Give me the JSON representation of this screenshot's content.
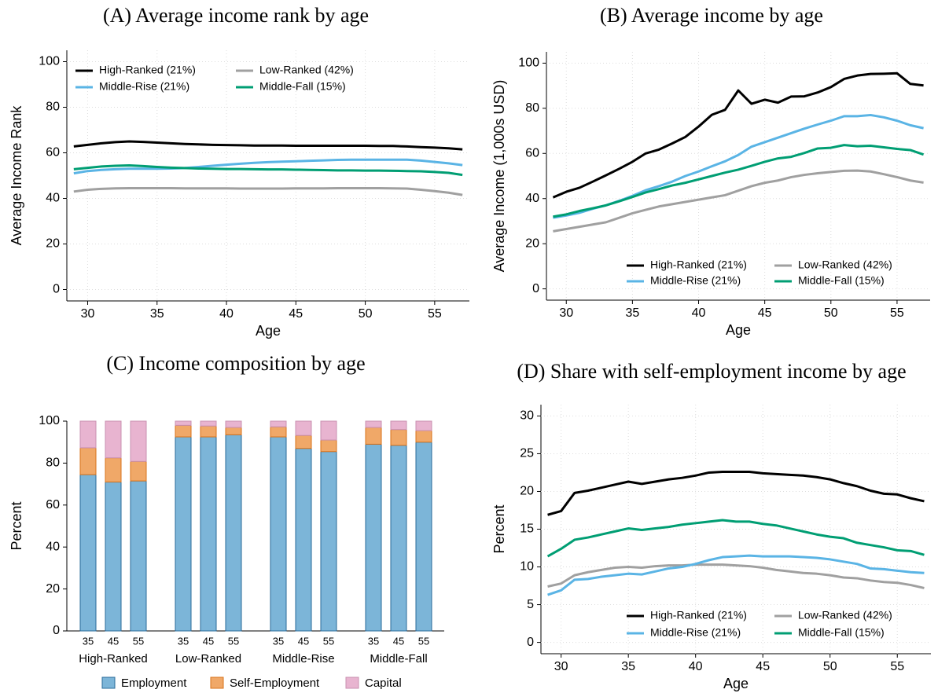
{
  "chart_data": [
    {
      "type": "line",
      "title": "(A) Average income rank by age",
      "xlabel": "Age",
      "ylabel": "Average Income Rank",
      "x": [
        29,
        30,
        31,
        32,
        33,
        34,
        35,
        36,
        37,
        38,
        39,
        40,
        41,
        42,
        43,
        44,
        45,
        46,
        47,
        48,
        49,
        50,
        51,
        52,
        53,
        54,
        55,
        56,
        57
      ],
      "xlim": [
        28.5,
        57.5
      ],
      "xticks": [
        30,
        35,
        40,
        45,
        50,
        55
      ],
      "ylim": [
        -5,
        105
      ],
      "yticks": [
        0,
        20,
        40,
        60,
        80,
        100
      ],
      "grid": true,
      "legend": "upper left",
      "series": [
        {
          "name": "High-Ranked (21%)",
          "color": "#000000",
          "values": [
            62.8,
            63.5,
            64.2,
            64.7,
            65,
            64.8,
            64.5,
            64.2,
            63.9,
            63.7,
            63.5,
            63.4,
            63.3,
            63.2,
            63.2,
            63.2,
            63.1,
            63.1,
            63.1,
            63.1,
            63.1,
            63.1,
            63.0,
            63.0,
            62.8,
            62.5,
            62.3,
            62.0,
            61.5
          ]
        },
        {
          "name": "Low-Ranked (42%)",
          "color": "#a0a0a0",
          "values": [
            43,
            43.8,
            44.2,
            44.4,
            44.5,
            44.5,
            44.5,
            44.5,
            44.4,
            44.4,
            44.4,
            44.4,
            44.3,
            44.3,
            44.3,
            44.3,
            44.4,
            44.4,
            44.4,
            44.5,
            44.5,
            44.5,
            44.5,
            44.4,
            44.3,
            43.8,
            43.2,
            42.5,
            41.5
          ]
        },
        {
          "name": "Middle-Rise (21%)",
          "color": "#5ab4e5",
          "values": [
            51,
            52,
            52.5,
            52.8,
            53,
            53,
            53,
            53.1,
            53.3,
            53.8,
            54.3,
            54.8,
            55.2,
            55.6,
            55.9,
            56.1,
            56.3,
            56.5,
            56.7,
            56.9,
            57,
            57,
            57,
            57,
            57,
            56.6,
            56,
            55.4,
            54.6
          ]
        },
        {
          "name": "Middle-Fall (15%)",
          "color": "#009e73",
          "values": [
            52.8,
            53.4,
            54,
            54.3,
            54.5,
            54.2,
            53.8,
            53.5,
            53.3,
            53.1,
            53,
            52.9,
            52.9,
            52.8,
            52.7,
            52.7,
            52.6,
            52.5,
            52.4,
            52.3,
            52.3,
            52.2,
            52.2,
            52.1,
            52,
            51.9,
            51.6,
            51.2,
            50.3
          ]
        }
      ]
    },
    {
      "type": "line",
      "title": "(B) Average income by age",
      "xlabel": "Age",
      "ylabel": "Average Income (1,000s USD)",
      "x": [
        29,
        30,
        31,
        32,
        33,
        34,
        35,
        36,
        37,
        38,
        39,
        40,
        41,
        42,
        43,
        44,
        45,
        46,
        47,
        48,
        49,
        50,
        51,
        52,
        53,
        54,
        55,
        56,
        57
      ],
      "xlim": [
        28.5,
        57.5
      ],
      "xticks": [
        30,
        35,
        40,
        45,
        50,
        55
      ],
      "ylim": [
        -5,
        105
      ],
      "yticks": [
        0,
        20,
        40,
        60,
        80,
        100
      ],
      "grid": true,
      "legend": "lower right",
      "series": [
        {
          "name": "High-Ranked (21%)",
          "color": "#000000",
          "values": [
            40.5,
            43,
            44.8,
            47.5,
            50.3,
            53.2,
            56.3,
            60,
            61.7,
            64.4,
            67.3,
            71.9,
            77.1,
            79.3,
            87.9,
            82,
            83.8,
            82.5,
            85.2,
            85.3,
            87,
            89.4,
            93,
            94.5,
            95.2,
            95.3,
            95.5,
            90.8,
            90.1
          ]
        },
        {
          "name": "Low-Ranked (42%)",
          "color": "#a0a0a0",
          "values": [
            25.5,
            26.5,
            27.5,
            28.5,
            29.5,
            31.5,
            33.5,
            35,
            36.5,
            37.5,
            38.5,
            39.5,
            40.5,
            41.5,
            43.5,
            45.5,
            47,
            48,
            49.5,
            50.5,
            51.2,
            51.8,
            52.3,
            52.4,
            52,
            50.8,
            49.5,
            48,
            47.1
          ]
        },
        {
          "name": "Middle-Rise (21%)",
          "color": "#5ab4e5",
          "values": [
            31.5,
            32.5,
            33.7,
            35.5,
            37,
            39,
            41.2,
            43.7,
            45.5,
            47.5,
            50,
            52,
            54.3,
            56.5,
            59.3,
            63,
            65,
            67,
            69,
            71,
            72.8,
            74.5,
            76.5,
            76.5,
            77,
            76,
            74.5,
            72.5,
            71.2
          ]
        },
        {
          "name": "Middle-Fall (15%)",
          "color": "#009e73",
          "values": [
            32,
            33,
            34.5,
            35.7,
            37,
            38.8,
            40.7,
            42.7,
            44.2,
            45.8,
            47,
            48.5,
            50,
            51.5,
            52.8,
            54.5,
            56.3,
            57.8,
            58.5,
            60.2,
            62.2,
            62.5,
            63.7,
            63.2,
            63.4,
            62.7,
            62,
            61.5,
            59.5
          ]
        }
      ]
    },
    {
      "type": "stacked_bar",
      "title": "(C) Income composition by age",
      "ylabel": "Percent",
      "categories": [
        "35",
        "45",
        "55",
        "35",
        "45",
        "55",
        "35",
        "45",
        "55",
        "35",
        "45",
        "55"
      ],
      "groups": [
        "High-Ranked",
        "Low-Ranked",
        "Middle-Rise",
        "Middle-Fall"
      ],
      "ylim": [
        0,
        100
      ],
      "yticks": [
        0,
        20,
        40,
        60,
        80,
        100
      ],
      "grid": false,
      "legend": "bottom",
      "series": [
        {
          "name": "Employment",
          "color": "#7cb5d8",
          "values": [
            74.5,
            71,
            71.5,
            92.5,
            92.5,
            93.5,
            92.5,
            87,
            85.5,
            89,
            88.5,
            90
          ]
        },
        {
          "name": "Self-Employment",
          "color": "#f0a868",
          "values": [
            12.8,
            11.5,
            9.3,
            5.5,
            5.2,
            3.5,
            4.8,
            6.2,
            5.5,
            8,
            7.5,
            5.5
          ]
        },
        {
          "name": "Capital",
          "color": "#e8b4d0",
          "values": [
            12.7,
            17.5,
            19.2,
            2,
            2.3,
            3,
            2.7,
            6.8,
            9,
            3,
            4,
            4.5
          ]
        }
      ]
    },
    {
      "type": "line",
      "title": "(D) Share with self-employment income by age",
      "xlabel": "Age",
      "ylabel": "Percent",
      "x": [
        29,
        30,
        31,
        32,
        33,
        34,
        35,
        36,
        37,
        38,
        39,
        40,
        41,
        42,
        43,
        44,
        45,
        46,
        47,
        48,
        49,
        50,
        51,
        52,
        53,
        54,
        55,
        56,
        57
      ],
      "xlim": [
        28.5,
        57.5
      ],
      "xticks": [
        30,
        35,
        40,
        45,
        50,
        55
      ],
      "ylim": [
        -1.5,
        31.5
      ],
      "yticks": [
        0,
        5,
        10,
        15,
        20,
        25,
        30
      ],
      "grid": true,
      "legend": "lower right",
      "series": [
        {
          "name": "High-Ranked (21%)",
          "color": "#000000",
          "values": [
            16.9,
            17.4,
            19.8,
            20.1,
            20.5,
            20.9,
            21.3,
            21,
            21.3,
            21.6,
            21.8,
            22.1,
            22.5,
            22.6,
            22.6,
            22.6,
            22.4,
            22.3,
            22.2,
            22.1,
            21.9,
            21.6,
            21.1,
            20.7,
            20.1,
            19.7,
            19.6,
            19.1,
            18.7
          ]
        },
        {
          "name": "Low-Ranked (42%)",
          "color": "#a0a0a0",
          "values": [
            7.4,
            7.8,
            8.9,
            9.3,
            9.6,
            9.9,
            10,
            9.9,
            10.1,
            10.2,
            10.2,
            10.3,
            10.3,
            10.3,
            10.2,
            10.1,
            9.9,
            9.6,
            9.4,
            9.2,
            9.1,
            8.9,
            8.6,
            8.5,
            8.2,
            8,
            7.9,
            7.6,
            7.2
          ]
        },
        {
          "name": "Middle-Rise (21%)",
          "color": "#5ab4e5",
          "values": [
            6.3,
            6.9,
            8.3,
            8.4,
            8.7,
            8.9,
            9.1,
            9,
            9.4,
            9.8,
            10,
            10.4,
            10.9,
            11.3,
            11.4,
            11.5,
            11.4,
            11.4,
            11.4,
            11.3,
            11.2,
            11,
            10.7,
            10.4,
            9.8,
            9.7,
            9.5,
            9.3,
            9.2
          ]
        },
        {
          "name": "Middle-Fall (15%)",
          "color": "#009e73",
          "values": [
            11.4,
            12.4,
            13.6,
            13.9,
            14.3,
            14.7,
            15.1,
            14.9,
            15.1,
            15.3,
            15.6,
            15.8,
            16,
            16.2,
            16,
            16,
            15.7,
            15.5,
            15.1,
            14.7,
            14.3,
            14,
            13.8,
            13.2,
            12.9,
            12.6,
            12.2,
            12.1,
            11.6
          ]
        }
      ]
    }
  ]
}
